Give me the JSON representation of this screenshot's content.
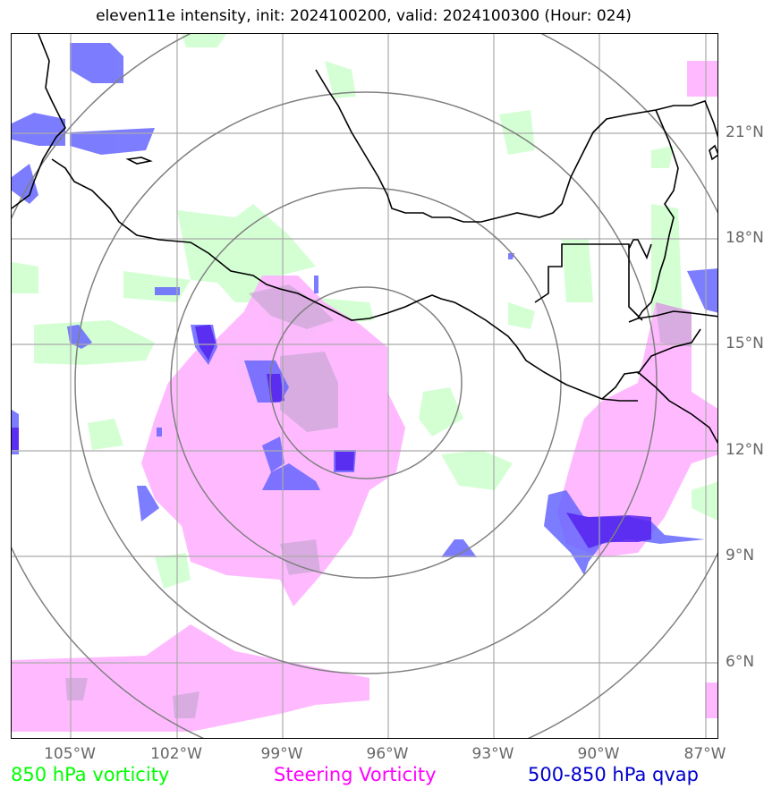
{
  "title": "eleven11e intensity, init: 2024100200, valid: 2024100300 (Hour: 024)",
  "lon_labels": [
    "105°W",
    "102°W",
    "99°W",
    "96°W",
    "93°W",
    "90°W",
    "87°W"
  ],
  "lat_labels": [
    "21°N",
    "18°N",
    "15°N",
    "12°N",
    "9°N",
    "6°N"
  ],
  "legend": {
    "vort850": {
      "label": "850 hPa vorticity",
      "color": "#00ff00"
    },
    "steering": {
      "label": "Steering Vorticity",
      "color": "#ff00ff"
    },
    "qvap": {
      "label": "500-850 hPa qvap",
      "color": "#0000cc"
    }
  },
  "colors": {
    "vorticity_fill": "#ccffcc",
    "steering_fill": "#ffb3ff",
    "qvap_fill": "#6666ff",
    "qvap_dark": "#5522ee",
    "grid": "#aaaaaa",
    "rings": "#808080",
    "coast": "#000000"
  }
}
